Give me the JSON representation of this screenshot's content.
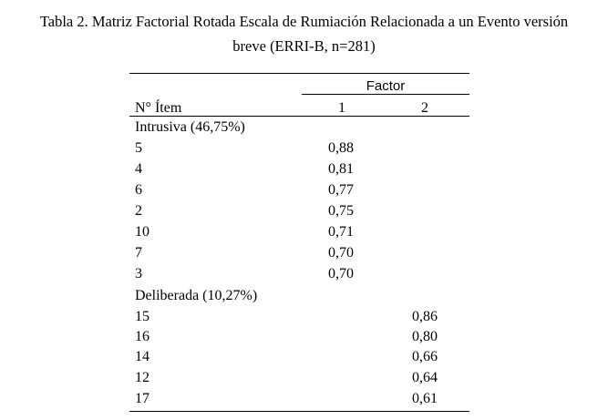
{
  "caption": {
    "line1": "Tabla 2. Matriz Factorial Rotada Escala de Rumiación Relacionada a un Evento versión",
    "line2": "breve (ERRI-B, n=281)"
  },
  "table": {
    "factor_header": "Factor",
    "item_header": "N° Ítem",
    "col1": "1",
    "col2": "2",
    "groups": [
      {
        "label": "Intrusiva (46,75%)",
        "rows": [
          {
            "item": "5",
            "f1": "0,88",
            "f2": ""
          },
          {
            "item": "4",
            "f1": "0,81",
            "f2": ""
          },
          {
            "item": "6",
            "f1": "0,77",
            "f2": ""
          },
          {
            "item": "2",
            "f1": "0,75",
            "f2": ""
          },
          {
            "item": "10",
            "f1": "0,71",
            "f2": ""
          },
          {
            "item": "7",
            "f1": "0,70",
            "f2": ""
          },
          {
            "item": "3",
            "f1": "0,70",
            "f2": ""
          }
        ]
      },
      {
        "label": "Deliberada (10,27%)",
        "rows": [
          {
            "item": "15",
            "f1": "",
            "f2": "0,86"
          },
          {
            "item": "16",
            "f1": "",
            "f2": "0,80"
          },
          {
            "item": "14",
            "f1": "",
            "f2": "0,66"
          },
          {
            "item": "12",
            "f1": "",
            "f2": "0,64"
          },
          {
            "item": "17",
            "f1": "",
            "f2": "0,61"
          }
        ]
      }
    ]
  }
}
